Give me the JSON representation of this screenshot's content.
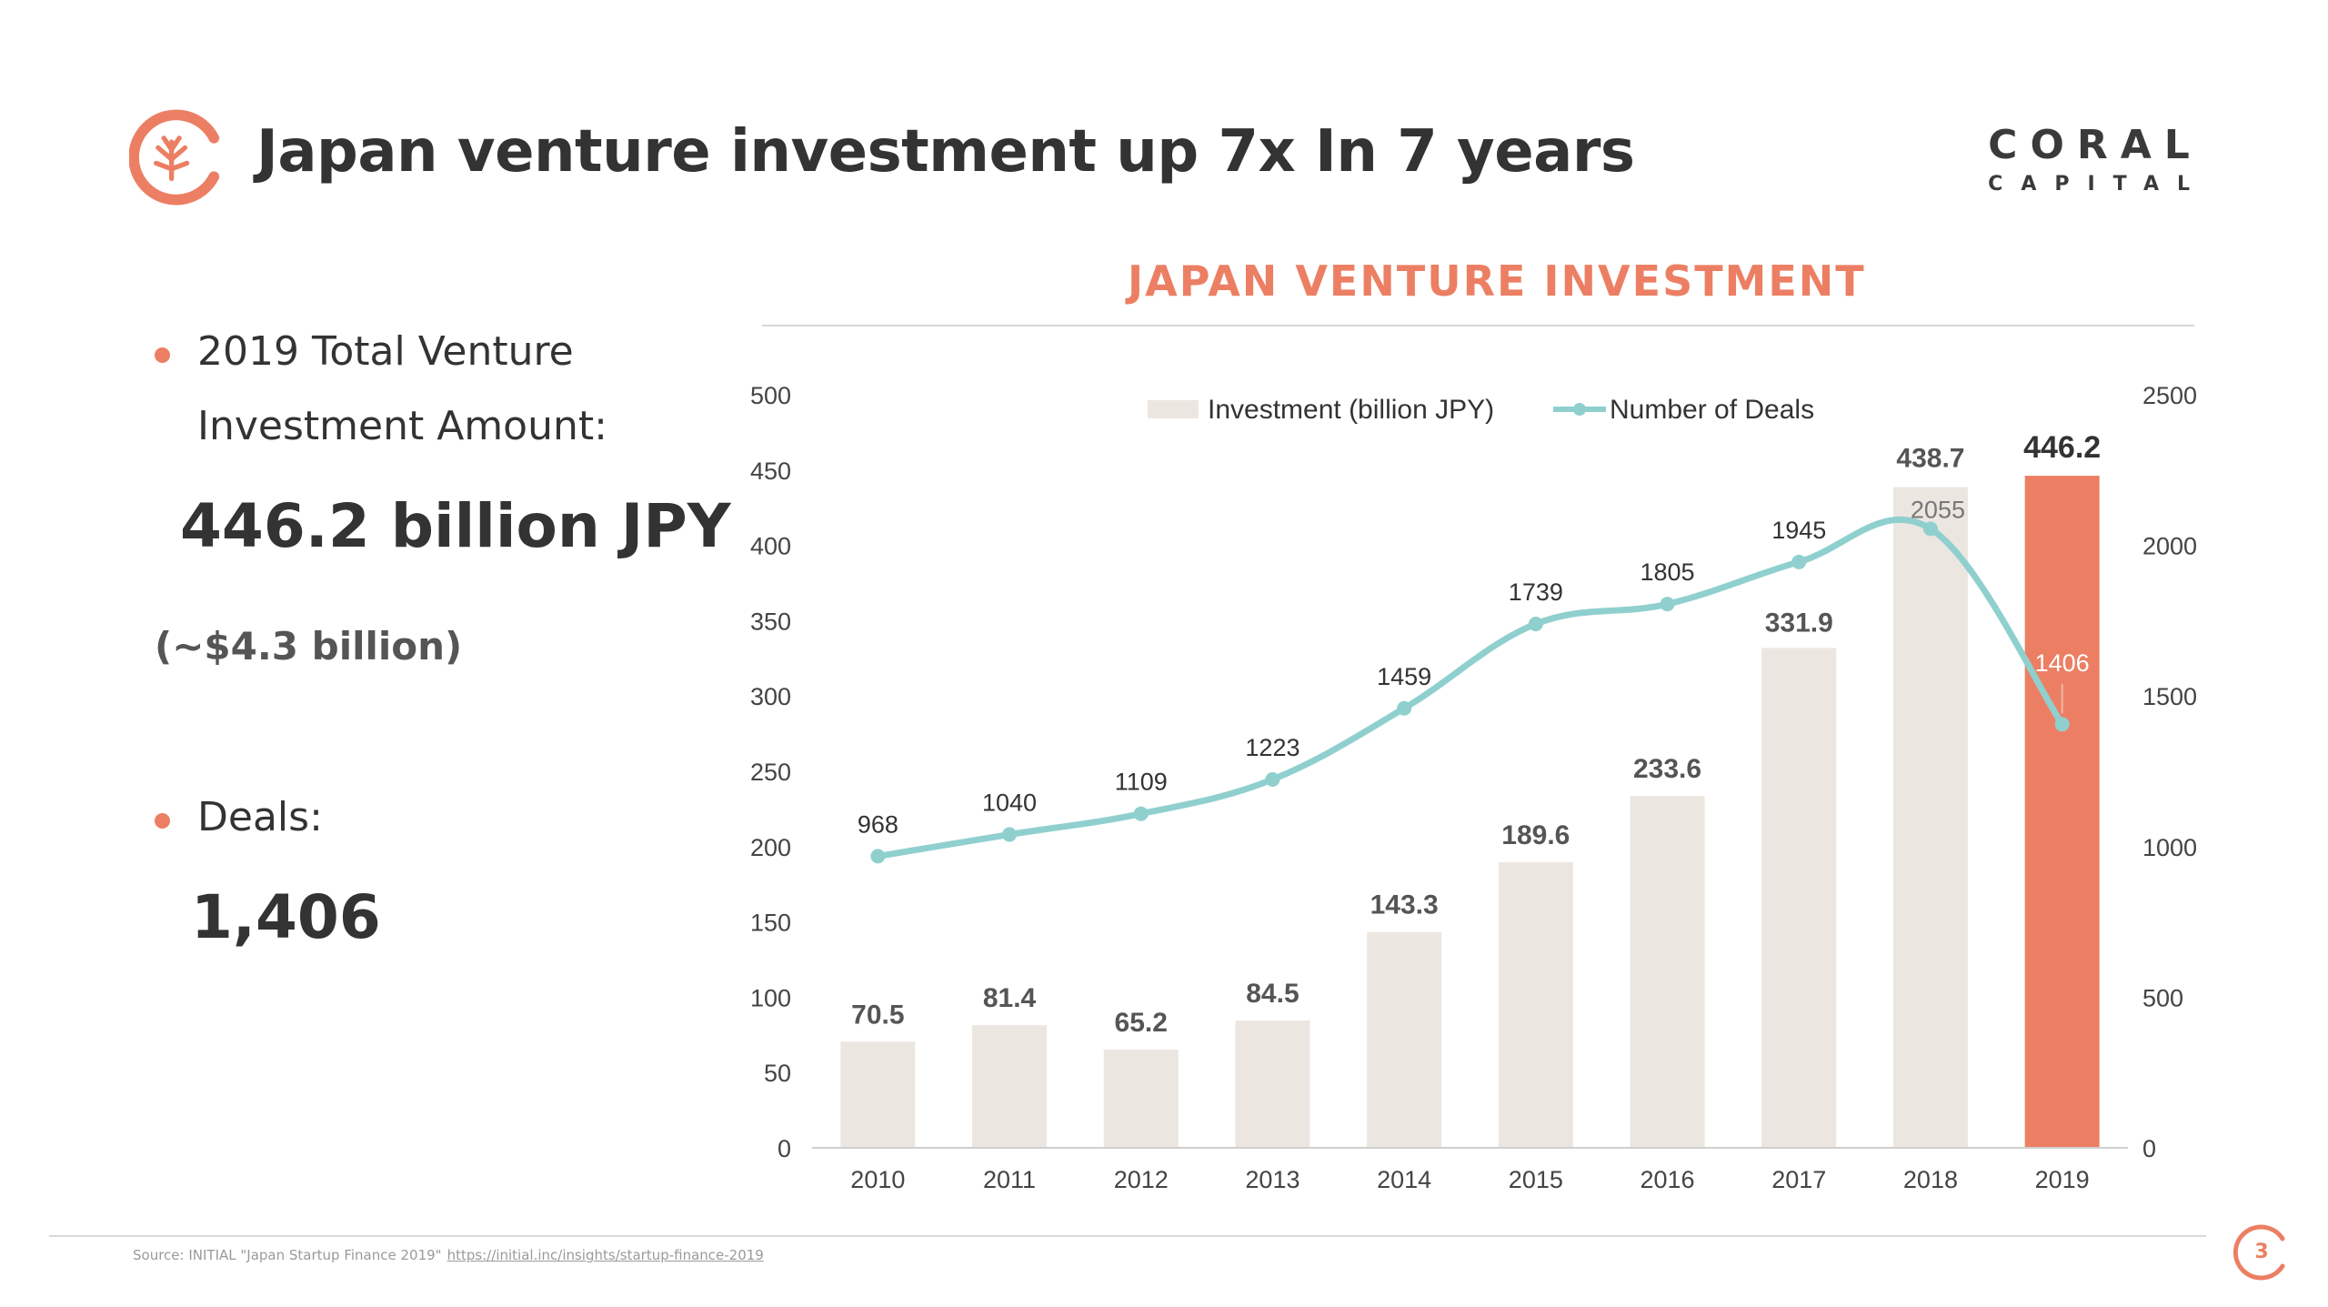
{
  "header": {
    "title": "Japan venture investment up 7x In 7 years",
    "brand_top": "CORAL",
    "brand_bottom": "CAPITAL",
    "logo_icon": "coral-capital-logo-icon"
  },
  "left_panel": {
    "bullet1_text": "2019 Total Venture Investment Amount:",
    "amount": "446.2 billion JPY",
    "amount_usd": "(~$4.3 billion)",
    "bullet2_text": "Deals:",
    "deals": "1,406"
  },
  "colors": {
    "accent": "#ec7f63",
    "bar": "#ece6e1",
    "highlight_bar": "#ec7f63",
    "line": "#8fd0cf",
    "text": "#333333"
  },
  "chart_data": {
    "type": "bar",
    "title": "JAPAN VENTURE INVESTMENT",
    "categories": [
      "2010",
      "2011",
      "2012",
      "2013",
      "2014",
      "2015",
      "2016",
      "2017",
      "2018",
      "2019"
    ],
    "series": [
      {
        "name": "Investment (billion JPY)",
        "type": "bar",
        "axis": "left",
        "values": [
          70.5,
          81.4,
          65.2,
          84.5,
          143.3,
          189.6,
          233.6,
          331.9,
          438.7,
          446.2
        ],
        "labels": [
          "70.5",
          "81.4",
          "65.2",
          "84.5",
          "143.3",
          "189.6",
          "233.6",
          "331.9",
          "438.7",
          "446.2"
        ],
        "highlight_index": 9
      },
      {
        "name": "Number of Deals",
        "type": "line",
        "axis": "right",
        "smooth": true,
        "values": [
          968,
          1040,
          1109,
          1223,
          1459,
          1739,
          1805,
          1945,
          2055,
          1406
        ],
        "labels": [
          "968",
          "1040",
          "1109",
          "1223",
          "1459",
          "1739",
          "1805",
          "1945",
          "2055",
          "1406"
        ]
      }
    ],
    "y_left": {
      "min": 0,
      "max": 500,
      "ticks": [
        "0",
        "50",
        "100",
        "150",
        "200",
        "250",
        "300",
        "350",
        "400",
        "450",
        "500"
      ]
    },
    "y_right": {
      "min": 0,
      "max": 2500,
      "ticks": [
        "0",
        "500",
        "1000",
        "1500",
        "2000",
        "2500"
      ]
    },
    "legend": {
      "position": "top-center"
    },
    "grid": false
  },
  "footer": {
    "source_text": "Source: INITIAL \"Japan Startup Finance 2019\"",
    "source_link": "https://initial.inc/insights/startup-finance-2019",
    "page_number": "3"
  }
}
